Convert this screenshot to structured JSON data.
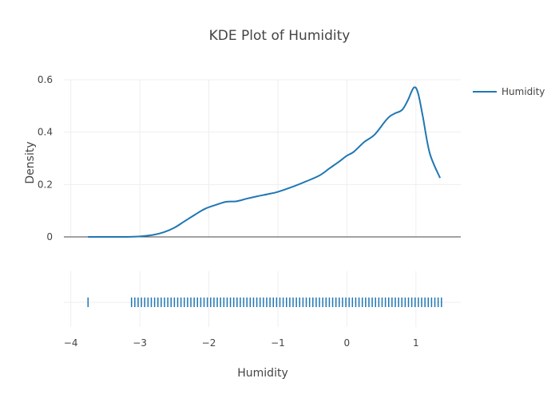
{
  "chart_data": {
    "type": "line",
    "title": "KDE Plot of Humidity",
    "xlabel": "Humidity",
    "ylabel": "Density",
    "xlim": [
      -4.1,
      1.65
    ],
    "ylim": [
      0,
      0.6
    ],
    "x_ticks": [
      -4,
      -3,
      -2,
      -1,
      0,
      1
    ],
    "x_tick_labels": [
      "−4",
      "−3",
      "−2",
      "−1",
      "0",
      "1"
    ],
    "y_ticks": [
      0,
      0.2,
      0.4,
      0.6
    ],
    "y_tick_labels": [
      "0",
      "0.2",
      "0.4",
      "0.6"
    ],
    "grid": true,
    "legend": {
      "position": "top-right",
      "entries": [
        "Humidity"
      ]
    },
    "colors": {
      "series": "#1f77b4",
      "grid": "#eeeeee",
      "zeroline": "#444444",
      "text": "#444444"
    },
    "series": [
      {
        "name": "Humidity",
        "x": [
          -3.75,
          -3.5,
          -3.25,
          -3.0,
          -2.8,
          -2.65,
          -2.5,
          -2.35,
          -2.2,
          -2.05,
          -1.9,
          -1.75,
          -1.6,
          -1.45,
          -1.3,
          -1.15,
          -1.0,
          -0.8,
          -0.6,
          -0.4,
          -0.25,
          -0.1,
          0.0,
          0.1,
          0.25,
          0.4,
          0.55,
          0.62,
          0.7,
          0.8,
          0.88,
          0.97,
          1.03,
          1.1,
          1.2,
          1.35
        ],
        "y": [
          0.0,
          0.0,
          0.0,
          0.002,
          0.008,
          0.018,
          0.035,
          0.06,
          0.085,
          0.108,
          0.122,
          0.134,
          0.136,
          0.146,
          0.155,
          0.163,
          0.172,
          0.19,
          0.211,
          0.234,
          0.262,
          0.29,
          0.31,
          0.325,
          0.362,
          0.39,
          0.44,
          0.46,
          0.472,
          0.485,
          0.52,
          0.57,
          0.55,
          0.46,
          0.32,
          0.225
        ]
      }
    ],
    "rug": {
      "outlier": -3.75,
      "min": -3.12,
      "max": 1.37,
      "count": 95
    }
  }
}
